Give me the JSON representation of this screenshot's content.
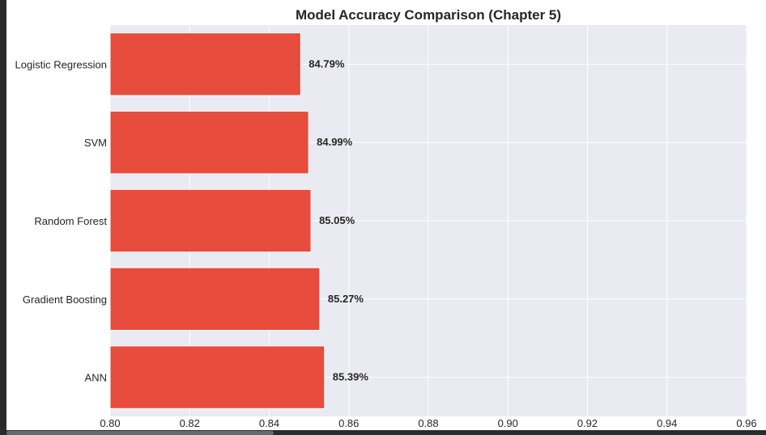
{
  "chart_data": {
    "type": "bar",
    "orientation": "horizontal",
    "title": "Model Accuracy Comparison (Chapter 5)",
    "xlabel": "",
    "ylabel": "",
    "categories": [
      "Logistic Regression",
      "SVM",
      "Random Forest",
      "Gradient Boosting",
      "ANN"
    ],
    "values": [
      0.8479,
      0.8499,
      0.8505,
      0.8527,
      0.8539
    ],
    "value_labels": [
      "84.79%",
      "84.99%",
      "85.05%",
      "85.27%",
      "85.39%"
    ],
    "xlim": [
      0.8,
      0.96
    ],
    "xticks": [
      "0.80",
      "0.82",
      "0.84",
      "0.86",
      "0.88",
      "0.90",
      "0.92",
      "0.94",
      "0.96"
    ],
    "grid": true,
    "colors": {
      "bar": "#e74c3c",
      "plot_background": "#eaeaf2",
      "grid": "#ffffff"
    }
  }
}
